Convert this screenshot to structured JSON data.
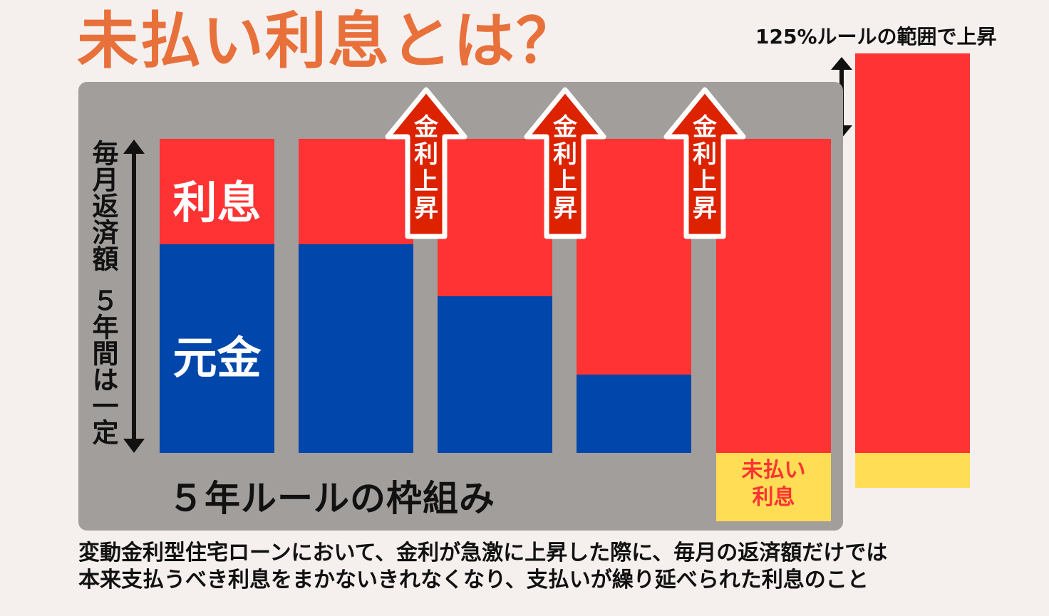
{
  "title": "未払い利息とは？",
  "axis_label": {
    "top": "毎月返済額",
    "bottom": "５年間は一定"
  },
  "segments": {
    "interest": "利息",
    "principal": "元金"
  },
  "rate_rise_label": "金利上昇",
  "rule_label": "５年ルールの枠組み",
  "unpaid_interest_label": [
    "未払い",
    "利息"
  ],
  "range_label": "125%ルールの範囲で上昇",
  "description": [
    "変動金利型住宅ローンにおいて、金利が急激に上昇した際に、毎月の返済額だけでは",
    "本来支払うべき利息をまかないきれなくなり、支払いが繰り延べられた利息のこと"
  ],
  "colors": {
    "interest": "#ff3333",
    "principal": "#0046ab",
    "unpaid": "#ffdd55",
    "arrow_fill": "#dd2200",
    "title": "#e8703a",
    "panel": "#a19e9c"
  },
  "icons": [
    "double-headed-arrow-icon",
    "up-arrow-icon"
  ]
}
